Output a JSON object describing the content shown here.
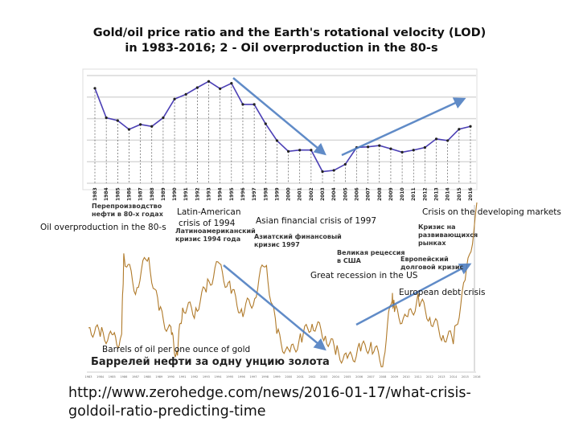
{
  "title_line1": "Gold/oil price ratio and the Earth's rotational velocity (LOD)",
  "title_line2": "in 1983-2016; 2 - Oil overproduction in the 80-s",
  "chart_data": [
    {
      "type": "line",
      "x": [
        1983,
        1984,
        1985,
        1986,
        1987,
        1988,
        1989,
        1990,
        1991,
        1992,
        1993,
        1994,
        1995,
        1996,
        1997,
        1998,
        1999,
        2000,
        2001,
        2002,
        2003,
        2004,
        2005,
        2006,
        2007,
        2008,
        2009,
        2010,
        2011,
        2012,
        2013,
        2014,
        2015,
        2016
      ],
      "values": [
        4.41,
        3.04,
        2.91,
        2.5,
        2.73,
        2.64,
        3.04,
        3.91,
        4.13,
        4.44,
        4.73,
        4.39,
        4.64,
        3.66,
        3.66,
        2.76,
        1.98,
        1.48,
        1.54,
        1.54,
        0.54,
        0.6,
        0.88,
        1.66,
        1.69,
        1.75,
        1.6,
        1.44,
        1.54,
        1.66,
        2.06,
        1.98,
        2.51,
        2.64
      ],
      "ylim": [
        0,
        5
      ],
      "grid": true,
      "line_color": "#4b3fb5",
      "tick_labels": [
        "1983",
        "1984",
        "1985",
        "1986",
        "1987",
        "1988",
        "1989",
        "1990",
        "1991",
        "1992",
        "1993",
        "1994",
        "1995",
        "1996",
        "1997",
        "1998",
        "1999",
        "2000",
        "2001",
        "2002",
        "2003",
        "2004",
        "2005",
        "2006",
        "2007",
        "2008",
        "2009",
        "2010",
        "2011",
        "2012",
        "2013",
        "2014",
        "2015",
        "2016"
      ]
    },
    {
      "type": "line",
      "x": [
        1983,
        1984,
        1985,
        1985.8,
        1986,
        1987,
        1988,
        1989,
        1990,
        1990.5,
        1991,
        1992,
        1993,
        1994,
        1995,
        1996,
        1997,
        1998,
        1999,
        2000,
        2001,
        2002,
        2003,
        2004,
        2005,
        2006,
        2007,
        2008,
        2008.8,
        2009,
        2010,
        2011,
        2012,
        2013,
        2014,
        2015,
        2016
      ],
      "values": [
        14,
        13,
        12,
        11.5,
        27,
        21,
        27,
        17,
        13,
        9,
        18,
        17,
        21,
        25,
        21,
        17,
        19,
        26,
        13,
        9,
        12,
        15,
        13,
        10,
        8,
        10,
        11,
        8,
        20,
        17,
        15,
        19,
        16,
        13,
        12,
        22,
        35
      ],
      "line_color": "#b07a2a",
      "tick_labels": [
        "1983",
        "1984",
        "1985",
        "1986",
        "1987",
        "1988",
        "1989",
        "1990",
        "1991",
        "1992",
        "1993",
        "1994",
        "1995",
        "1996",
        "1997",
        "1998",
        "1999",
        "2000",
        "2001",
        "2002",
        "2003",
        "2004",
        "2005",
        "2006",
        "2007",
        "2008",
        "2009",
        "2010",
        "2011",
        "2012",
        "2013",
        "2014",
        "2015",
        "2016"
      ],
      "title": "Баррелей нефти за одну унцию золота",
      "annotations_ru": [
        "Перепроизводство нефти в 80-х годах",
        "Латиноамериканский кризис 1994 года",
        "Азиатский финансовый кризис 1997",
        "Великая рецессия в США",
        "Европейский долговой кризис",
        "Кризис на развивающихся рынках"
      ]
    }
  ],
  "annotations": {
    "oil_overproduction": "Oil overproduction in the 80-s",
    "latin_american_1": "Latin-American",
    "latin_american_2": "crisis of 1994",
    "asian": "Asian financial crisis of 1997",
    "developing": "Crisis on the developing markets",
    "great_recession": "Great recession in the US",
    "european": "European debt crisis",
    "barrels": "Barrels of oil per one ounce of gold"
  },
  "ru": {
    "overprod_1": "Перепроизводство",
    "overprod_2": "нефти в 80-х годах",
    "latin_1": "Латиноамериканский",
    "latin_2": "кризис 1994 года",
    "asian_1": "Азиатский финансовый",
    "asian_2": "кризис 1997",
    "recession_1": "Великая рецессия",
    "recession_2": "в США",
    "euro_1": "Европейский",
    "euro_2": "долговой кризис",
    "dev_1": "Кризис на",
    "dev_2": "развивающихся",
    "dev_3": "рынках",
    "chart_title": "Баррелей нефти за одну унцию золота"
  },
  "source_url": "http://www.zerohedge.com/news/2016-01-17/what-crisis-goldoil-ratio-predicting-time",
  "colors": {
    "arrow": "#4f7fc2",
    "top_line": "#4b3fb5",
    "bottom_line": "#b07a2a"
  }
}
